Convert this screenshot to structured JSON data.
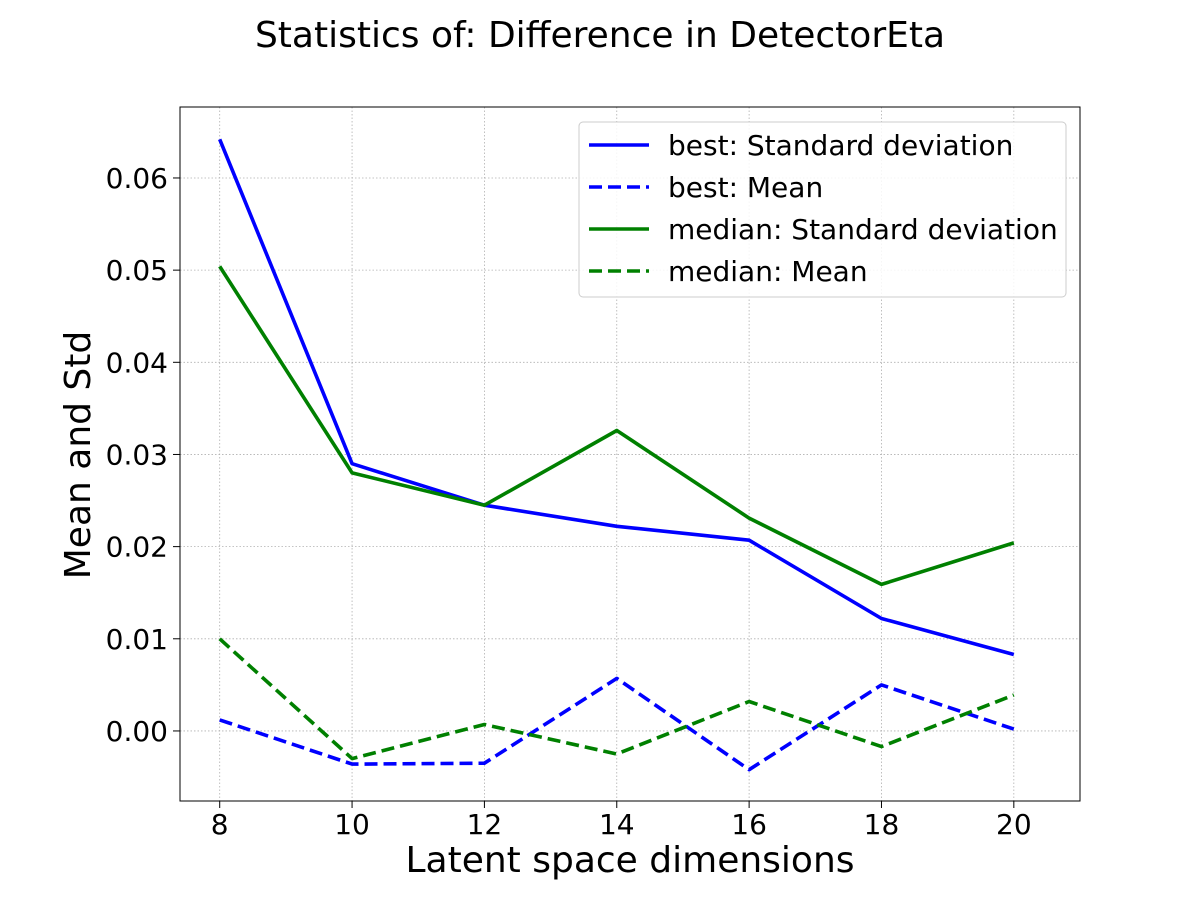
{
  "chart_data": {
    "type": "line",
    "title": "Statistics of: Difference in DetectorEta",
    "xlabel": "Latent space dimensions",
    "ylabel": "Mean and Std",
    "x": [
      8,
      10,
      12,
      14,
      16,
      18,
      20
    ],
    "xlim": [
      7.4,
      21.0
    ],
    "ylim": [
      -0.0076,
      0.0677
    ],
    "xticks": [
      8,
      10,
      12,
      14,
      16,
      18,
      20
    ],
    "yticks": [
      0.0,
      0.01,
      0.02,
      0.03,
      0.04,
      0.05,
      0.06
    ],
    "ytick_labels": [
      "0.00",
      "0.01",
      "0.02",
      "0.03",
      "0.04",
      "0.05",
      "0.06"
    ],
    "grid": true,
    "legend_position": "top-right",
    "series": [
      {
        "name": "best: Standard deviation",
        "color": "#0000ff",
        "dash": "solid",
        "values": [
          0.0642,
          0.029,
          0.0245,
          0.0222,
          0.0207,
          0.0122,
          0.0083
        ]
      },
      {
        "name": "best: Mean",
        "color": "#0000ff",
        "dash": "dashed",
        "values": [
          0.0012,
          -0.0036,
          -0.0035,
          0.0057,
          -0.0042,
          0.005,
          0.0002
        ]
      },
      {
        "name": "median: Standard deviation",
        "color": "#008000",
        "dash": "solid",
        "values": [
          0.0504,
          0.028,
          0.0245,
          0.0326,
          0.0231,
          0.0159,
          0.0204
        ]
      },
      {
        "name": "median: Mean",
        "color": "#008000",
        "dash": "dashed",
        "values": [
          0.01,
          -0.003,
          0.0007,
          -0.0025,
          0.0032,
          -0.0017,
          0.0039
        ]
      }
    ]
  }
}
